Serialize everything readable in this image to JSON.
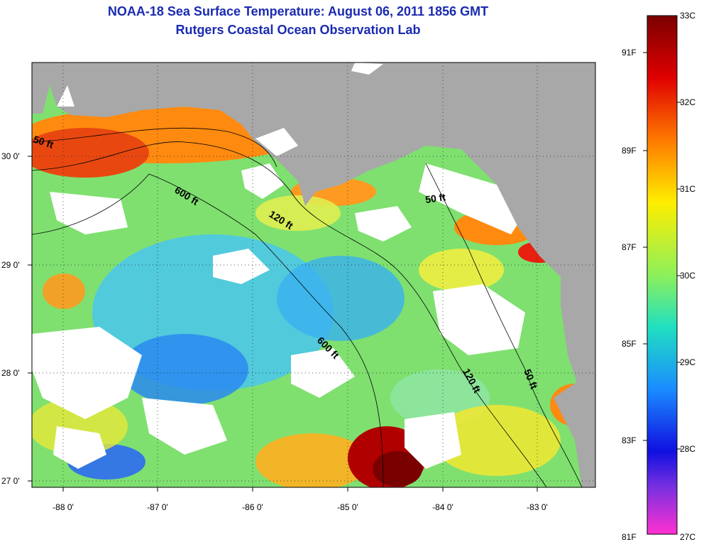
{
  "header": {
    "title": "NOAA-18 Sea Surface Temperature:  August 06, 2011 1856 GMT",
    "subtitle": "Rutgers Coastal Ocean Observation Lab"
  },
  "map": {
    "lon_labels": [
      "-88 0'",
      "-87 0'",
      "-86 0'",
      "-85 0'",
      "-84 0'",
      "-83 0'"
    ],
    "lat_labels": [
      "30 0'",
      "29 0'",
      "28 0'",
      "27 0'"
    ],
    "contour_labels": [
      "50 ft",
      "600 ft",
      "120 ft",
      "50 ft",
      "600 ft",
      "120 ft",
      "50 ft"
    ],
    "colors": {
      "land": "#a8a8a8",
      "cloud": "#ffffff"
    }
  },
  "colorbar": {
    "celsius_labels": [
      "33C",
      "32C",
      "31C",
      "30C",
      "29C",
      "28C",
      "27C"
    ],
    "fahrenheit_labels": [
      "91F",
      "89F",
      "87F",
      "85F",
      "83F",
      "81F"
    ]
  }
}
